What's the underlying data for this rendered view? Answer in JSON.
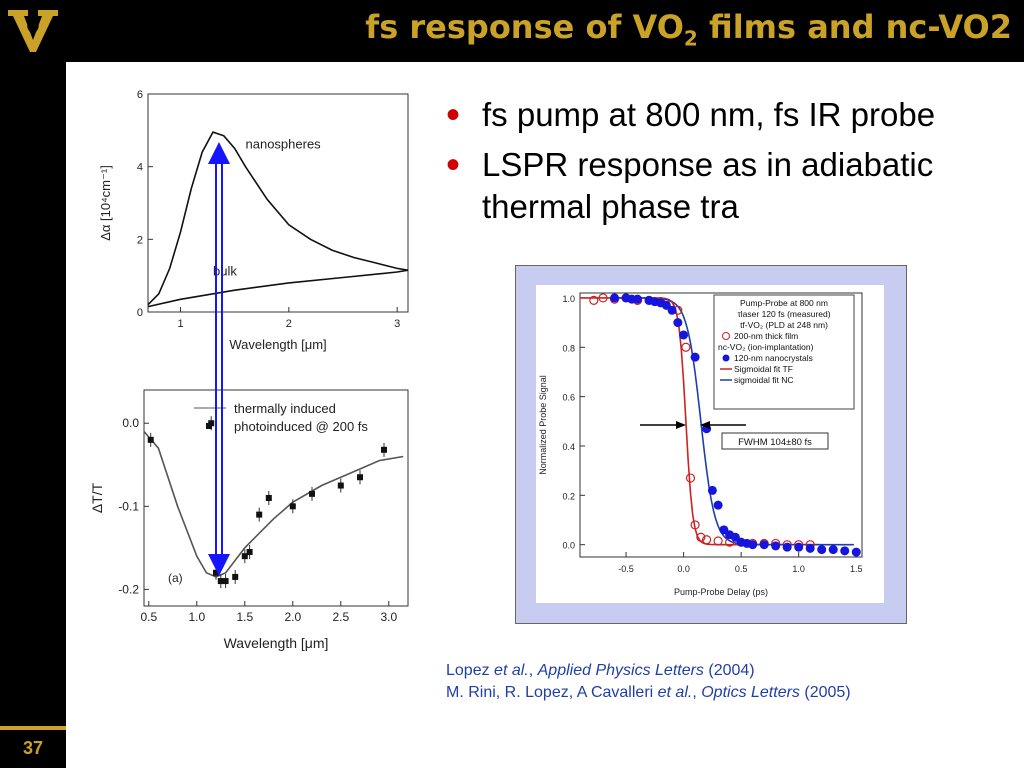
{
  "slide": {
    "title_main": "fs response of VO",
    "title_sub": "2",
    "title_rest": " films and nc-VO2",
    "slide_number": "37",
    "logo_icon": "vanderbilt-v-logo-icon",
    "accent_color": "#c9a227"
  },
  "bullets": [
    "fs pump at 800 nm, fs IR probe",
    "LSPR response as in adiabatic thermal phase tra"
  ],
  "citations": {
    "line1": {
      "authors": "Lopez ",
      "etal": "et al.",
      "sep": ", ",
      "journal": "Applied Physics Letters",
      "year": " (2004)"
    },
    "line2": {
      "authors": "M. Rini, R. Lopez, A Cavalleri ",
      "etal": "et al.",
      "sep": ", ",
      "journal": "Optics Letters",
      "year": " (2005)"
    }
  },
  "chart_data": [
    {
      "type": "line",
      "ylabel": "Δα [10⁴cm⁻¹]",
      "xlabel": "Wavelength [μm]",
      "xlim": [
        0.7,
        3.1
      ],
      "ylim": [
        0,
        6
      ],
      "xticks": [
        "1",
        "2",
        "3"
      ],
      "yticks": [
        "0",
        "2",
        "4",
        "6"
      ],
      "series": [
        {
          "name": "nanospheres",
          "x": [
            0.7,
            0.8,
            0.9,
            1.0,
            1.1,
            1.2,
            1.3,
            1.4,
            1.5,
            1.6,
            1.8,
            2.0,
            2.2,
            2.4,
            2.6,
            2.8,
            3.0,
            3.1
          ],
          "values": [
            0.2,
            0.5,
            1.2,
            2.2,
            3.4,
            4.4,
            4.95,
            4.85,
            4.5,
            4.0,
            3.1,
            2.4,
            2.0,
            1.7,
            1.5,
            1.35,
            1.2,
            1.15
          ]
        },
        {
          "name": "bulk",
          "x": [
            0.7,
            1.0,
            1.5,
            2.0,
            2.5,
            3.0,
            3.1
          ],
          "values": [
            0.15,
            0.35,
            0.6,
            0.8,
            0.95,
            1.1,
            1.15
          ]
        }
      ]
    },
    {
      "type": "scatter",
      "panel_label": "(a)",
      "ylabel": "ΔT/T",
      "xlabel": "Wavelength [μm]",
      "xlim": [
        0.45,
        3.2
      ],
      "ylim": [
        -0.22,
        0.04
      ],
      "xticks": [
        "0.5",
        "1.0",
        "1.5",
        "2.0",
        "2.5",
        "3.0"
      ],
      "yticks": [
        "0.0",
        "-0.1",
        "-0.2"
      ],
      "series": [
        {
          "name": "thermally induced",
          "x": [
            0.45,
            0.6,
            0.8,
            1.0,
            1.1,
            1.2,
            1.3,
            1.5,
            1.8,
            2.0,
            2.3,
            2.6,
            2.9,
            3.15
          ],
          "values": [
            -0.01,
            -0.03,
            -0.1,
            -0.16,
            -0.18,
            -0.185,
            -0.18,
            -0.15,
            -0.115,
            -0.095,
            -0.075,
            -0.06,
            -0.045,
            -0.04
          ]
        },
        {
          "name": "photoinduced @ 200 fs",
          "x": [
            0.52,
            1.15,
            1.2,
            1.25,
            1.3,
            1.4,
            1.5,
            1.55,
            1.65,
            1.75,
            2.0,
            2.2,
            2.5,
            2.7,
            2.95
          ],
          "values": [
            -0.02,
            0.0,
            -0.18,
            -0.19,
            -0.19,
            -0.185,
            -0.16,
            -0.155,
            -0.11,
            -0.09,
            -0.1,
            -0.085,
            -0.075,
            -0.065,
            -0.032
          ]
        }
      ]
    },
    {
      "type": "scatter",
      "xlabel": "Pump-Probe Delay (ps)",
      "ylabel": "Normalized Probe Signal",
      "xlim": [
        -0.9,
        1.55
      ],
      "ylim": [
        -0.05,
        1.02
      ],
      "xticks": [
        "-0.5",
        "0.0",
        "0.5",
        "1.0",
        "1.5"
      ],
      "yticks": [
        "0.0",
        "0.2",
        "0.4",
        "0.6",
        "0.8",
        "1.0"
      ],
      "annotation": "FWHM 104±80 fs",
      "legend_title": [
        "Pump-Probe at 800 nm",
        "τlaser 120 fs (measured)",
        "tf-VO₂ (PLD at 248 nm)"
      ],
      "legend_group2": "nc-VO₂ (ion-implantation)",
      "series": [
        {
          "name": "200-nm thick film",
          "x": [
            -0.78,
            -0.7,
            -0.6,
            -0.5,
            -0.4,
            -0.3,
            -0.2,
            -0.12,
            -0.05,
            0.02,
            0.06,
            0.1,
            0.15,
            0.2,
            0.3,
            0.4,
            0.5,
            0.6,
            0.7,
            0.8,
            0.9,
            1.0,
            1.1
          ],
          "values": [
            0.99,
            1.0,
            0.995,
            1.0,
            0.99,
            0.99,
            0.985,
            0.97,
            0.95,
            0.8,
            0.27,
            0.08,
            0.03,
            0.02,
            0.015,
            0.01,
            0.01,
            0.005,
            0.005,
            0.005,
            0.0,
            0.0,
            0.0
          ]
        },
        {
          "name": "120-nm nanocrystals",
          "x": [
            -0.6,
            -0.5,
            -0.45,
            -0.4,
            -0.3,
            -0.25,
            -0.2,
            -0.15,
            -0.1,
            -0.05,
            0.0,
            0.1,
            0.2,
            0.25,
            0.3,
            0.35,
            0.4,
            0.45,
            0.5,
            0.55,
            0.6,
            0.7,
            0.8,
            0.9,
            1.0,
            1.1,
            1.2,
            1.3,
            1.4,
            1.5
          ],
          "values": [
            1.0,
            1.0,
            0.995,
            0.995,
            0.99,
            0.985,
            0.98,
            0.97,
            0.95,
            0.9,
            0.85,
            0.76,
            0.47,
            0.22,
            0.16,
            0.06,
            0.04,
            0.03,
            0.01,
            0.005,
            0.0,
            0.0,
            -0.005,
            -0.01,
            -0.01,
            -0.015,
            -0.02,
            -0.02,
            -0.025,
            -0.03
          ]
        }
      ],
      "fits": [
        {
          "name": "Sigmoidal fit TF",
          "color": "#cc2222",
          "x0": 0.02,
          "w": 0.03
        },
        {
          "name": "sigmoidal fit NC",
          "color": "#1f3fa8",
          "x0": 0.15,
          "w": 0.06
        }
      ]
    }
  ]
}
